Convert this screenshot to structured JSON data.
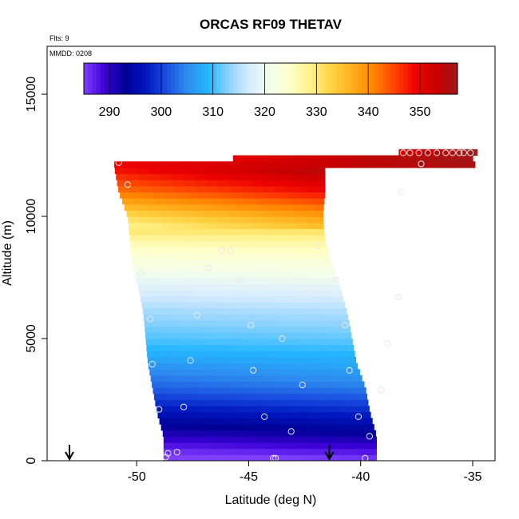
{
  "chart_data": {
    "type": "heatmap",
    "title": "ORCAS RF09 THETAV",
    "annotations": [
      "Flts: 9",
      "MMDD: 0208"
    ],
    "xlabel": "Latitude (deg N)",
    "ylabel": "Altitude (m)",
    "xlim": [
      -55,
      -34
    ],
    "ylim": [
      0,
      17000
    ],
    "xticks": [
      -50,
      -45,
      -40,
      -35
    ],
    "yticks": [
      0,
      5000,
      10000,
      15000
    ],
    "colorbar": {
      "ticks": [
        290,
        300,
        310,
        320,
        330,
        340,
        350
      ],
      "range": [
        285,
        357
      ],
      "colors": [
        "#7f3fff",
        "#3b00d6",
        "#000095",
        "#0018c0",
        "#1a4fe0",
        "#2e8df0",
        "#23b7ff",
        "#8fd3ff",
        "#d7ecff",
        "#f4ffea",
        "#ffffc8",
        "#ffef80",
        "#ffd040",
        "#ffac18",
        "#ff8200",
        "#ff4000",
        "#ee0000",
        "#c80000",
        "#a01818"
      ]
    },
    "field": {
      "description_levels_m": [
        0,
        1000,
        2000,
        3000,
        4000,
        5000,
        6000,
        7000,
        8000,
        9000,
        10000,
        11000,
        12000,
        12700
      ],
      "thetav_K": [
        284,
        291,
        297,
        303,
        307,
        311,
        314,
        318,
        322,
        327,
        335,
        345,
        352,
        354
      ],
      "left_edge_deg": [
        -48.8,
        -48.8,
        -49.1,
        -49.3,
        -49.5,
        -49.6,
        -49.7,
        -49.9,
        -50.2,
        -50.3,
        -50.4,
        -50.8,
        -51.0,
        -38.3
      ],
      "right_edge_deg": [
        -39.3,
        -39.3,
        -39.6,
        -39.8,
        -40.2,
        -40.4,
        -40.6,
        -40.9,
        -41.3,
        -41.6,
        -41.7,
        -41.6,
        -41.6,
        -34.8
      ]
    },
    "flight_points": [
      {
        "lat": -48.7,
        "alt": 150
      },
      {
        "lat": -48.6,
        "alt": 300
      },
      {
        "lat": -48.2,
        "alt": 350
      },
      {
        "lat": -43.9,
        "alt": 100
      },
      {
        "lat": -43.8,
        "alt": 100
      },
      {
        "lat": -39.8,
        "alt": 100
      },
      {
        "lat": -39.6,
        "alt": 1000
      },
      {
        "lat": -43.1,
        "alt": 1200
      },
      {
        "lat": -44.3,
        "alt": 1800
      },
      {
        "lat": -40.1,
        "alt": 1800
      },
      {
        "lat": -47.9,
        "alt": 2200
      },
      {
        "lat": -49.0,
        "alt": 2100
      },
      {
        "lat": -39.1,
        "alt": 2900
      },
      {
        "lat": -42.6,
        "alt": 3100
      },
      {
        "lat": -40.5,
        "alt": 3700
      },
      {
        "lat": -44.8,
        "alt": 3700
      },
      {
        "lat": -49.3,
        "alt": 3950
      },
      {
        "lat": -47.6,
        "alt": 4100
      },
      {
        "lat": -38.8,
        "alt": 4800
      },
      {
        "lat": -43.5,
        "alt": 5000
      },
      {
        "lat": -49.4,
        "alt": 5800
      },
      {
        "lat": -47.3,
        "alt": 5950
      },
      {
        "lat": -44.9,
        "alt": 5550
      },
      {
        "lat": -40.7,
        "alt": 5550
      },
      {
        "lat": -38.3,
        "alt": 6700
      },
      {
        "lat": -42.3,
        "alt": 6900
      },
      {
        "lat": -45.4,
        "alt": 7400
      },
      {
        "lat": -49.8,
        "alt": 7700
      },
      {
        "lat": -46.8,
        "alt": 7900
      },
      {
        "lat": -41.1,
        "alt": 7400
      },
      {
        "lat": -46.2,
        "alt": 8600
      },
      {
        "lat": -45.8,
        "alt": 8600
      },
      {
        "lat": -41.9,
        "alt": 8800
      },
      {
        "lat": -50.4,
        "alt": 11300
      },
      {
        "lat": -38.2,
        "alt": 11000
      },
      {
        "lat": -50.8,
        "alt": 12200
      },
      {
        "lat": -37.3,
        "alt": 12150
      },
      {
        "lat": -38.1,
        "alt": 12600
      },
      {
        "lat": -37.8,
        "alt": 12600
      },
      {
        "lat": -37.4,
        "alt": 12600
      },
      {
        "lat": -37.0,
        "alt": 12600
      },
      {
        "lat": -36.6,
        "alt": 12600
      },
      {
        "lat": -36.2,
        "alt": 12600
      },
      {
        "lat": -35.9,
        "alt": 12600
      },
      {
        "lat": -35.6,
        "alt": 12600
      },
      {
        "lat": -35.4,
        "alt": 12600
      },
      {
        "lat": -35.1,
        "alt": 12600
      }
    ],
    "markers": [
      {
        "lat": -53.0,
        "type": "down-arrow"
      },
      {
        "lat": -41.4,
        "type": "down-arrow"
      }
    ],
    "grid": false,
    "legend": "none"
  }
}
